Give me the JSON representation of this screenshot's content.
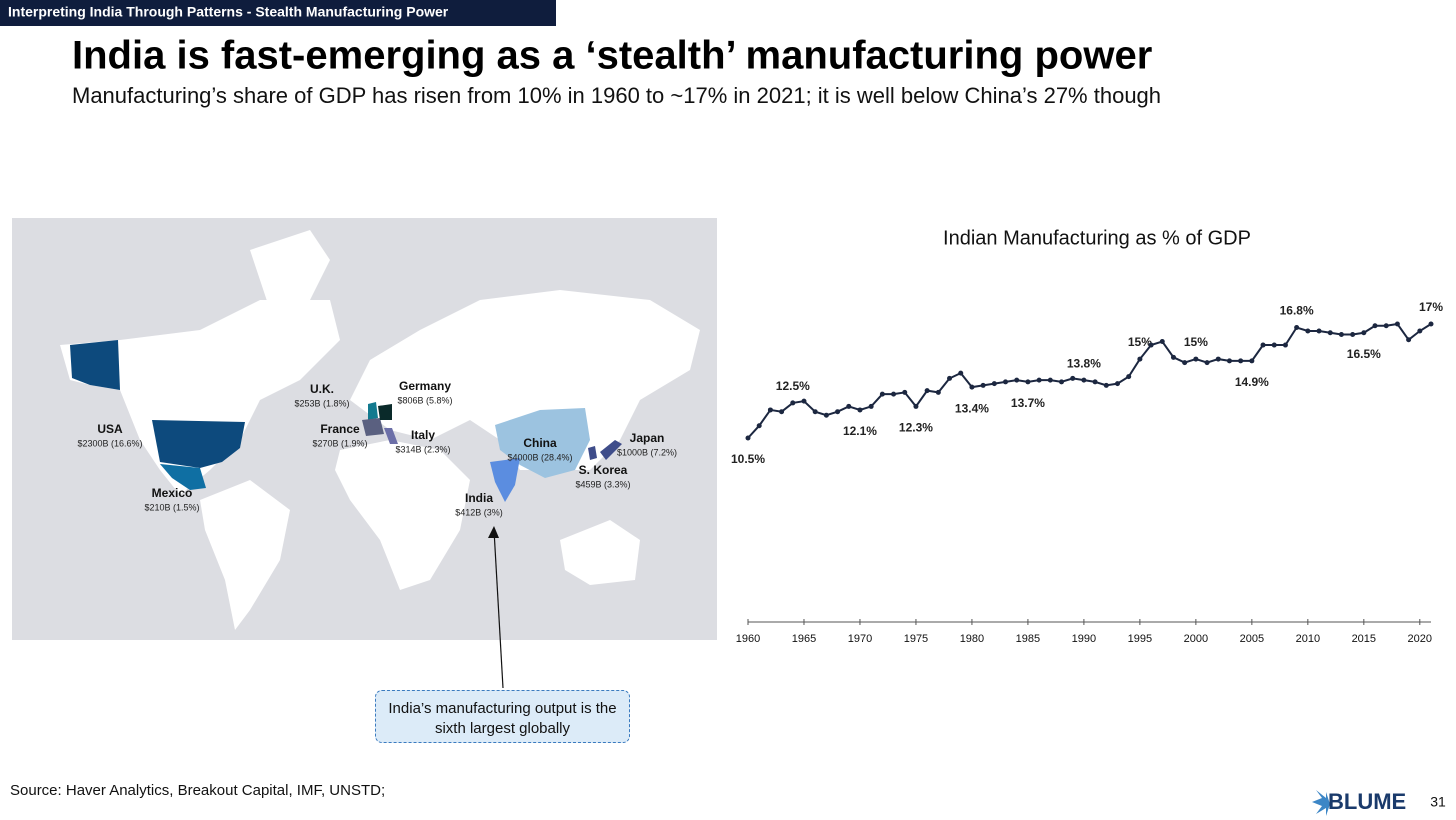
{
  "header": {
    "banner": "Interpreting India Through Patterns - Stealth Manufacturing Power",
    "title": "India is fast-emerging as a ‘stealth’ manufacturing power",
    "subtitle": "Manufacturing’s share of GDP has risen from 10% in 1960 to ~17% in 2021; it is well below China’s 27% though"
  },
  "map": {
    "labels": [
      {
        "name": "USA",
        "value": "$2300B (16.6%)"
      },
      {
        "name": "Mexico",
        "value": "$210B (1.5%)"
      },
      {
        "name": "U.K.",
        "value": "$253B (1.8%)"
      },
      {
        "name": "France",
        "value": "$270B (1.9%)"
      },
      {
        "name": "Germany",
        "value": "$806B (5.8%)"
      },
      {
        "name": "Italy",
        "value": "$314B (2.3%)"
      },
      {
        "name": "China",
        "value": "$4000B (28.4%)"
      },
      {
        "name": "India",
        "value": "$412B (3%)"
      },
      {
        "name": "S. Korea",
        "value": "$459B (3.3%)"
      },
      {
        "name": "Japan",
        "value": "$1000B (7.2%)"
      }
    ]
  },
  "callout": "India’s manufacturing output is the sixth largest globally",
  "footer": {
    "source": "Source: Haver Analytics, Breakout Capital, IMF, UNSTD;",
    "logo": "BLUME",
    "page": "31"
  },
  "chart_data": {
    "type": "line",
    "title": "Indian Manufacturing as % of GDP",
    "color": "#1c2740",
    "x": [
      1960,
      1961,
      1962,
      1963,
      1964,
      1965,
      1966,
      1967,
      1968,
      1969,
      1970,
      1971,
      1972,
      1973,
      1974,
      1975,
      1976,
      1977,
      1978,
      1979,
      1980,
      1981,
      1982,
      1983,
      1984,
      1985,
      1986,
      1987,
      1988,
      1989,
      1990,
      1991,
      1992,
      1993,
      1994,
      1995,
      1996,
      1997,
      1998,
      1999,
      2000,
      2001,
      2002,
      2003,
      2004,
      2005,
      2006,
      2007,
      2008,
      2009,
      2010,
      2011,
      2012,
      2013,
      2014,
      2015,
      2016,
      2017,
      2018,
      2019,
      2020,
      2021
    ],
    "values": [
      10.5,
      11.2,
      12.1,
      12.0,
      12.5,
      12.6,
      12.0,
      11.8,
      12.0,
      12.3,
      12.1,
      12.3,
      13.0,
      13.0,
      13.1,
      12.3,
      13.2,
      13.1,
      13.9,
      14.2,
      13.4,
      13.5,
      13.6,
      13.7,
      13.8,
      13.7,
      13.8,
      13.8,
      13.7,
      13.9,
      13.8,
      13.7,
      13.5,
      13.6,
      14.0,
      15,
      15.8,
      16.0,
      15.1,
      14.8,
      15,
      14.8,
      15.0,
      14.9,
      14.9,
      14.9,
      15.8,
      15.8,
      15.8,
      16.8,
      16.6,
      16.6,
      16.5,
      16.4,
      16.4,
      16.5,
      16.9,
      16.9,
      17.0,
      16.1,
      16.6,
      17
    ],
    "value_labels": [
      "10.5%",
      null,
      null,
      null,
      "12.5%",
      null,
      null,
      null,
      null,
      null,
      "12.1%",
      null,
      null,
      null,
      null,
      "12.3%",
      null,
      null,
      null,
      null,
      "13.4%",
      null,
      null,
      null,
      null,
      "13.7%",
      null,
      null,
      null,
      null,
      "13.8%",
      null,
      null,
      null,
      null,
      "15%",
      null,
      null,
      null,
      null,
      "15%",
      null,
      null,
      null,
      null,
      "14.9%",
      null,
      null,
      null,
      "16.8%",
      null,
      null,
      null,
      null,
      null,
      "16.5%",
      null,
      null,
      null,
      null,
      null,
      "17%"
    ],
    "xlim": [
      1960,
      2021
    ],
    "xticks": [
      1960,
      1965,
      1970,
      1975,
      1980,
      1985,
      1990,
      1995,
      2000,
      2005,
      2010,
      2015,
      2020
    ]
  }
}
